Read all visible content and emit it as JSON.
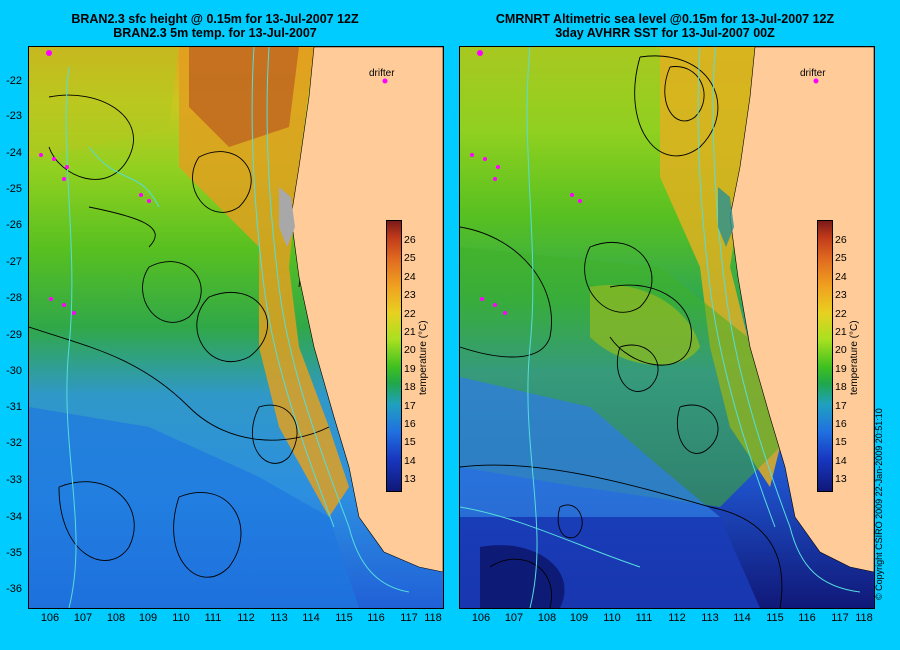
{
  "left_panel": {
    "title_line1": "BRAN2.3 sfc height @ 0.15m for 13-Jul-2007 12Z",
    "title_line2": "BRAN2.3 5m temp. for 13-Jul-2007",
    "drifter_label": "drifter"
  },
  "right_panel": {
    "title_line1": "CMRNRT Altimetric sea level  @0.15m  for 13-Jul-2007 12Z",
    "title_line2": "3day AVHRR SST for 13-Jul-2007 00Z",
    "drifter_label": "drifter"
  },
  "axes": {
    "y_ticks": [
      "-22",
      "-23",
      "-24",
      "-25",
      "-26",
      "-27",
      "-28",
      "-29",
      "-30",
      "-31",
      "-32",
      "-33",
      "-34",
      "-35",
      "-36"
    ],
    "x_ticks": [
      "106",
      "107",
      "108",
      "109",
      "110",
      "111",
      "112",
      "113",
      "114",
      "115",
      "116",
      "117",
      "118"
    ]
  },
  "colorbar": {
    "title": "temperature (°C)",
    "ticks": [
      "26",
      "25",
      "24",
      "23",
      "22",
      "21",
      "20",
      "19",
      "18",
      "17",
      "16",
      "15",
      "14",
      "13"
    ]
  },
  "copyright": "© Copyright CSIRO 2009   22-Jan-2009 20:51:10",
  "colors": {
    "background": "#00ccff",
    "land": "#ffcc99",
    "drifter": "#ff00ff",
    "contour": "#000000",
    "isobath": "#55dddd"
  }
}
